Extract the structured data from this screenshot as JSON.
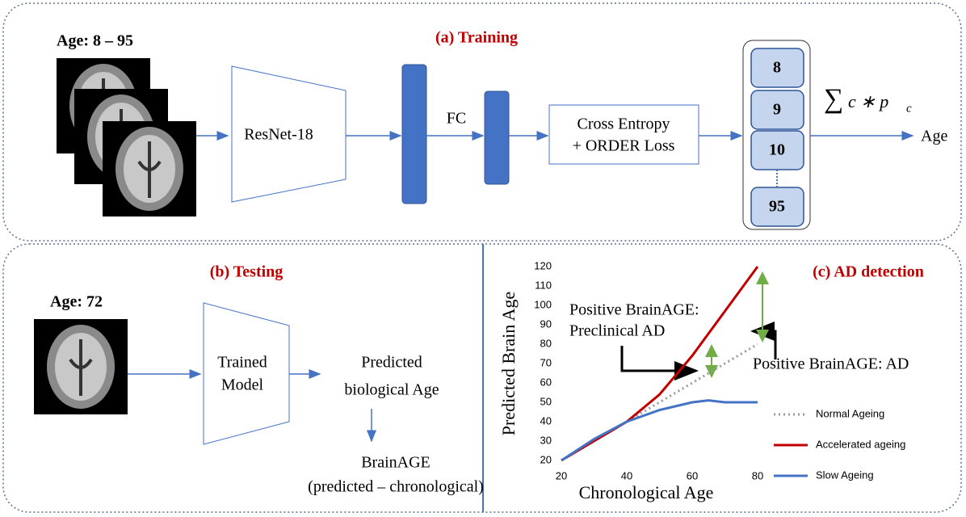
{
  "training": {
    "title": "(a) Training",
    "age_label": "Age: 8 – 95",
    "model": "ResNet-18",
    "fc": "FC",
    "loss": [
      "Cross Entropy",
      "+ ORDER Loss"
    ],
    "classes": [
      "8",
      "9",
      "10",
      "95"
    ],
    "formula": {
      "sum": "∑",
      "term": "c ∗ p",
      "subscript": "c"
    },
    "output": "Age"
  },
  "testing": {
    "title": "(b) Testing",
    "age_label": "Age: 72",
    "model": [
      "Trained",
      "Model"
    ],
    "prediction": [
      "Predicted",
      "biological Age"
    ],
    "brainage": [
      "BrainAGE",
      "(predicted – chronological)"
    ]
  },
  "chart_data": {
    "type": "line",
    "title": "(c) AD detection",
    "x_label": "Chronological Age",
    "y_label": "Predicted Brain Age",
    "xlim": [
      20,
      80
    ],
    "xticks": [
      20,
      40,
      60,
      80
    ],
    "ylim": [
      20,
      120
    ],
    "yticks": [
      20,
      30,
      40,
      50,
      60,
      70,
      80,
      90,
      100,
      110,
      120
    ],
    "series": [
      {
        "name": "Normal Ageing",
        "color": "#999999",
        "style": "dotted",
        "x": [
          20,
          40,
          60,
          80
        ],
        "values": [
          20,
          40,
          60,
          80
        ]
      },
      {
        "name": "Accelerated ageing",
        "color": "#c00000",
        "style": "solid",
        "x": [
          20,
          30,
          40,
          50,
          60,
          70,
          80
        ],
        "values": [
          20,
          30,
          40,
          54,
          74,
          97,
          120
        ]
      },
      {
        "name": "Slow Ageing",
        "color": "#4472c4",
        "style": "solid",
        "x": [
          20,
          30,
          40,
          50,
          60,
          65,
          70,
          80
        ],
        "values": [
          20,
          31,
          40,
          46,
          50,
          51,
          50,
          50
        ]
      }
    ],
    "annotations": [
      "Positive BrainAGE:",
      "Preclinical AD",
      "Positive BrainAGE: AD"
    ]
  }
}
